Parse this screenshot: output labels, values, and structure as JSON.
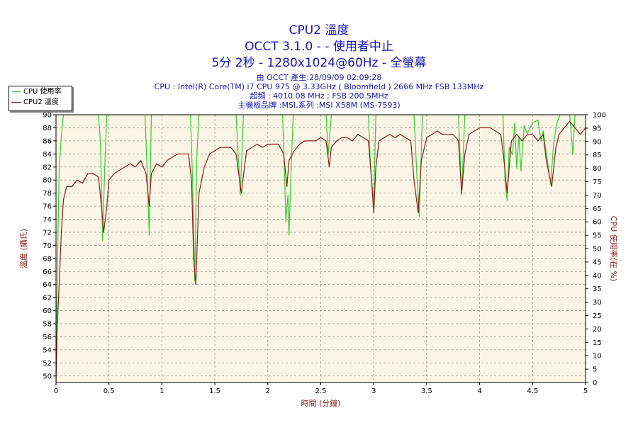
{
  "header": {
    "title_line1": "CPU2 溫度",
    "title_line2": "OCCT 3.1.0 -  - 使用者中止",
    "title_line3": "5分 2秒 - 1280x1024@60Hz - 全螢幕",
    "info_line1": "由 OCCT 產生:28/09/09 02:09:28",
    "info_line2": "CPU : Intel(R) Core(TM) i7 CPU 975 @ 3.33GHz ( Bloomfield ) 2666 MHz FSB 133MHz",
    "info_line3": "超頻 : 4010.08 MHz ; FSB 200.5MHz",
    "info_line4": "主機板品牌 :MSI,系列 :MSI X58M (MS-7593)"
  },
  "legend": [
    {
      "label": "CPU 使用率",
      "color": "#33cc33"
    },
    {
      "label": "CPU2 溫度",
      "color": "#8b1a1a"
    }
  ],
  "chart_data": {
    "type": "line",
    "xlabel": "時間 (分鐘)",
    "ylabel_left": "溫度 (攝氏)",
    "ylabel_right": "CPU 使用率(在 %)",
    "xlim": [
      0,
      5
    ],
    "ylim_left": [
      49,
      90
    ],
    "ylim_right": [
      0,
      100
    ],
    "x_ticks": [
      "0",
      "0.5",
      "1",
      "1.5",
      "2",
      "2.5",
      "3",
      "3.5",
      "4",
      "4.5",
      "5"
    ],
    "y_left_ticks": [
      "50",
      "52",
      "54",
      "56",
      "58",
      "60",
      "62",
      "64",
      "66",
      "68",
      "70",
      "72",
      "74",
      "76",
      "78",
      "80",
      "82",
      "84",
      "86",
      "88",
      "90"
    ],
    "y_right_ticks": [
      "0",
      "5",
      "10",
      "15",
      "20",
      "25",
      "30",
      "35",
      "40",
      "45",
      "50",
      "55",
      "60",
      "65",
      "70",
      "75",
      "80",
      "85",
      "90",
      "95",
      "100"
    ],
    "grid": true,
    "plot_background": "#faf5e4",
    "series": [
      {
        "name": "CPU2 溫度",
        "axis": "left",
        "color": "#8b1a1a",
        "points": [
          [
            0,
            49
          ],
          [
            0.01,
            57
          ],
          [
            0.03,
            64
          ],
          [
            0.05,
            72
          ],
          [
            0.07,
            77
          ],
          [
            0.1,
            79
          ],
          [
            0.15,
            79
          ],
          [
            0.2,
            80
          ],
          [
            0.25,
            79.5
          ],
          [
            0.3,
            81
          ],
          [
            0.35,
            81
          ],
          [
            0.4,
            80.5
          ],
          [
            0.43,
            76
          ],
          [
            0.45,
            72
          ],
          [
            0.48,
            76
          ],
          [
            0.5,
            80
          ],
          [
            0.55,
            81
          ],
          [
            0.6,
            81.5
          ],
          [
            0.65,
            82
          ],
          [
            0.7,
            82.5
          ],
          [
            0.75,
            82
          ],
          [
            0.8,
            83
          ],
          [
            0.85,
            81
          ],
          [
            0.88,
            76
          ],
          [
            0.9,
            81
          ],
          [
            0.95,
            82.5
          ],
          [
            1,
            82
          ],
          [
            1.05,
            83
          ],
          [
            1.1,
            83.5
          ],
          [
            1.15,
            84
          ],
          [
            1.2,
            84
          ],
          [
            1.25,
            84
          ],
          [
            1.28,
            80
          ],
          [
            1.3,
            68
          ],
          [
            1.32,
            64
          ],
          [
            1.35,
            78
          ],
          [
            1.4,
            82
          ],
          [
            1.45,
            84
          ],
          [
            1.5,
            84.5
          ],
          [
            1.55,
            85
          ],
          [
            1.6,
            85
          ],
          [
            1.65,
            85
          ],
          [
            1.7,
            84
          ],
          [
            1.75,
            78
          ],
          [
            1.78,
            82
          ],
          [
            1.8,
            84.5
          ],
          [
            1.85,
            85
          ],
          [
            1.9,
            85.5
          ],
          [
            1.95,
            85
          ],
          [
            2,
            85.5
          ],
          [
            2.05,
            85.5
          ],
          [
            2.1,
            85.5
          ],
          [
            2.15,
            84
          ],
          [
            2.18,
            79
          ],
          [
            2.2,
            83
          ],
          [
            2.25,
            84.5
          ],
          [
            2.3,
            85.5
          ],
          [
            2.35,
            86
          ],
          [
            2.4,
            86
          ],
          [
            2.45,
            86
          ],
          [
            2.5,
            86.5
          ],
          [
            2.55,
            86
          ],
          [
            2.58,
            82
          ],
          [
            2.6,
            85
          ],
          [
            2.65,
            86
          ],
          [
            2.7,
            86.5
          ],
          [
            2.75,
            86.5
          ],
          [
            2.8,
            86
          ],
          [
            2.85,
            87
          ],
          [
            2.9,
            86.5
          ],
          [
            2.95,
            86
          ],
          [
            2.98,
            80
          ],
          [
            3,
            75
          ],
          [
            3.02,
            82
          ],
          [
            3.05,
            86
          ],
          [
            3.1,
            86.5
          ],
          [
            3.15,
            87
          ],
          [
            3.2,
            86.5
          ],
          [
            3.25,
            87
          ],
          [
            3.3,
            86.5
          ],
          [
            3.35,
            86
          ],
          [
            3.38,
            80
          ],
          [
            3.42,
            75
          ],
          [
            3.45,
            83
          ],
          [
            3.5,
            86.5
          ],
          [
            3.55,
            87
          ],
          [
            3.6,
            87.5
          ],
          [
            3.65,
            87
          ],
          [
            3.7,
            87
          ],
          [
            3.75,
            87
          ],
          [
            3.8,
            86
          ],
          [
            3.83,
            78
          ],
          [
            3.86,
            84
          ],
          [
            3.9,
            87
          ],
          [
            3.95,
            87.5
          ],
          [
            4,
            88
          ],
          [
            4.05,
            88
          ],
          [
            4.1,
            88
          ],
          [
            4.15,
            87.5
          ],
          [
            4.2,
            87
          ],
          [
            4.23,
            83
          ],
          [
            4.26,
            78
          ],
          [
            4.3,
            86
          ],
          [
            4.35,
            87
          ],
          [
            4.4,
            86
          ],
          [
            4.45,
            87
          ],
          [
            4.5,
            87
          ],
          [
            4.55,
            86
          ],
          [
            4.6,
            87
          ],
          [
            4.63,
            83
          ],
          [
            4.68,
            79
          ],
          [
            4.72,
            85
          ],
          [
            4.75,
            87
          ],
          [
            4.8,
            88
          ],
          [
            4.85,
            89
          ],
          [
            4.9,
            88
          ],
          [
            4.95,
            87
          ],
          [
            5,
            88
          ]
        ]
      },
      {
        "name": "CPU 使用率",
        "axis": "right",
        "color": "#33cc33",
        "points": [
          [
            0,
            10
          ],
          [
            0.01,
            35
          ],
          [
            0.03,
            80
          ],
          [
            0.05,
            92
          ],
          [
            0.07,
            100
          ],
          [
            0.4,
            100
          ],
          [
            0.42,
            90
          ],
          [
            0.44,
            53
          ],
          [
            0.46,
            80
          ],
          [
            0.48,
            100
          ],
          [
            0.84,
            100
          ],
          [
            0.86,
            80
          ],
          [
            0.88,
            55
          ],
          [
            0.9,
            100
          ],
          [
            1.27,
            100
          ],
          [
            1.29,
            75
          ],
          [
            1.31,
            38
          ],
          [
            1.33,
            85
          ],
          [
            1.35,
            100
          ],
          [
            1.7,
            100
          ],
          [
            1.72,
            85
          ],
          [
            1.74,
            70
          ],
          [
            1.77,
            100
          ],
          [
            2.14,
            100
          ],
          [
            2.16,
            75
          ],
          [
            2.17,
            60
          ],
          [
            2.19,
            70
          ],
          [
            2.2,
            55
          ],
          [
            2.22,
            80
          ],
          [
            2.24,
            100
          ],
          [
            2.55,
            100
          ],
          [
            2.57,
            85
          ],
          [
            2.6,
            100
          ],
          [
            2.95,
            100
          ],
          [
            2.97,
            80
          ],
          [
            3,
            67
          ],
          [
            3.02,
            100
          ],
          [
            3.38,
            100
          ],
          [
            3.41,
            75
          ],
          [
            3.43,
            62
          ],
          [
            3.46,
            100
          ],
          [
            3.8,
            100
          ],
          [
            3.83,
            70
          ],
          [
            3.86,
            100
          ],
          [
            4.22,
            100
          ],
          [
            4.24,
            75
          ],
          [
            4.26,
            68
          ],
          [
            4.28,
            88
          ],
          [
            4.31,
            85
          ],
          [
            4.33,
            97
          ],
          [
            4.35,
            80
          ],
          [
            4.37,
            92
          ],
          [
            4.39,
            79
          ],
          [
            4.42,
            96
          ],
          [
            4.45,
            93
          ],
          [
            4.5,
            97
          ],
          [
            4.55,
            98
          ],
          [
            4.58,
            90
          ],
          [
            4.6,
            94
          ],
          [
            4.64,
            83
          ],
          [
            4.67,
            74
          ],
          [
            4.7,
            90
          ],
          [
            4.73,
            97
          ],
          [
            4.76,
            100
          ],
          [
            4.85,
            100
          ],
          [
            4.88,
            85
          ],
          [
            4.9,
            100
          ],
          [
            5,
            100
          ]
        ]
      }
    ]
  }
}
